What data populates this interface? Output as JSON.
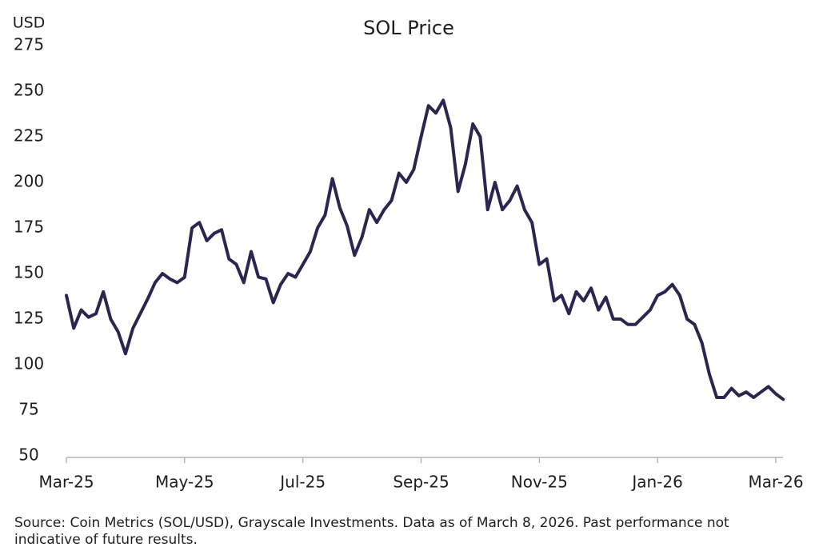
{
  "chart_data": {
    "type": "line",
    "title": "SOL Price",
    "y_unit": "USD",
    "categories": [
      "Mar-25",
      null,
      null,
      null,
      null,
      null,
      null,
      null,
      null,
      null,
      null,
      null,
      null,
      null,
      null,
      null,
      "May-25",
      null,
      null,
      null,
      null,
      null,
      null,
      null,
      null,
      null,
      null,
      null,
      null,
      null,
      null,
      null,
      "Jul-25",
      null,
      null,
      null,
      null,
      null,
      null,
      null,
      null,
      null,
      null,
      null,
      null,
      null,
      null,
      null,
      "Sep-25",
      null,
      null,
      null,
      null,
      null,
      null,
      null,
      null,
      null,
      null,
      null,
      null,
      null,
      null,
      null,
      "Nov-25",
      null,
      null,
      null,
      null,
      null,
      null,
      null,
      null,
      null,
      null,
      null,
      null,
      null,
      null,
      null,
      "Jan-26",
      null,
      null,
      null,
      null,
      null,
      null,
      null,
      null,
      null,
      null,
      null,
      null,
      null,
      null,
      null,
      "Mar-26",
      null
    ],
    "series": [
      {
        "name": "SOL/USD",
        "color": "#2b2550",
        "values": [
          138,
          120,
          130,
          126,
          128,
          140,
          125,
          118,
          106,
          120,
          128,
          136,
          145,
          150,
          147,
          145,
          148,
          175,
          178,
          168,
          172,
          174,
          158,
          155,
          145,
          162,
          148,
          147,
          134,
          144,
          150,
          148,
          155,
          162,
          175,
          182,
          202,
          186,
          176,
          160,
          170,
          185,
          178,
          185,
          190,
          205,
          200,
          207,
          225,
          242,
          238,
          245,
          230,
          195,
          210,
          232,
          225,
          185,
          200,
          185,
          190,
          198,
          185,
          178,
          155,
          158,
          135,
          138,
          128,
          140,
          135,
          142,
          130,
          137,
          125,
          125,
          122,
          122,
          126,
          130,
          138,
          140,
          144,
          138,
          125,
          122,
          112,
          95,
          82,
          82,
          87,
          83,
          85,
          82,
          85,
          88,
          84,
          81
        ]
      }
    ],
    "ylim": [
      50,
      275
    ],
    "yticks": [
      50,
      75,
      100,
      125,
      150,
      175,
      200,
      225,
      250,
      275
    ],
    "grid": false,
    "footnote": [
      "Source: Coin Metrics (SOL/USD), Grayscale Investments. Data as of March 8, 2026. Past performance not",
      "indicative of future results."
    ]
  }
}
